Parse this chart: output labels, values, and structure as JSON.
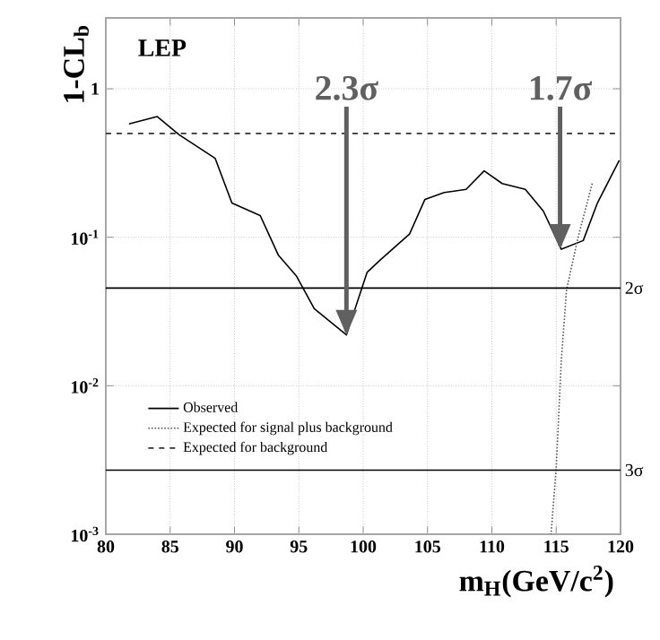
{
  "chart_data": {
    "type": "line",
    "xlabel": "m$_{H}$(GeV/c$^{2}$)",
    "ylabel": "1-CL$_{b}$",
    "xlim": [
      80,
      120
    ],
    "ylim": [
      0.001,
      3
    ],
    "log": "y",
    "xticks": [
      80,
      85,
      90,
      95,
      100,
      105,
      110,
      115,
      120
    ],
    "yticks": [
      {
        "value": 1,
        "label": "1"
      },
      {
        "value": 0.1,
        "label": "10$^{-1}$"
      },
      {
        "value": 0.01,
        "label": "10$^{-2}$"
      },
      {
        "value": 0.001,
        "label": "10$^{-3}$"
      }
    ],
    "grid": true,
    "legend": "bottom left",
    "series": [
      {
        "name": "Observed",
        "color": "#000000",
        "line_style": "solid",
        "x": [
          81.8,
          84.0,
          85.7,
          88.5,
          89.8,
          92.0,
          93.4,
          94.8,
          96.2,
          98.7,
          100.3,
          101.3,
          103.6,
          104.8,
          106.3,
          108.0,
          109.4,
          110.8,
          112.6,
          114.0,
          115.4,
          117.1,
          118.2,
          119.9
        ],
        "values": [
          0.58,
          0.65,
          0.49,
          0.34,
          0.17,
          0.14,
          0.076,
          0.055,
          0.033,
          0.022,
          0.058,
          0.07,
          0.105,
          0.18,
          0.2,
          0.21,
          0.28,
          0.23,
          0.21,
          0.15,
          0.083,
          0.095,
          0.17,
          0.33
        ]
      },
      {
        "name": "Expected for signal plus background",
        "color": "#555555",
        "line_style": "dotted",
        "x": [
          117.8,
          116.7,
          115.8,
          115.4,
          115.0,
          114.6
        ],
        "values": [
          0.23,
          0.1,
          0.044,
          0.015,
          0.0028,
          0.001
        ]
      },
      {
        "name": "Expected for background",
        "color": "#333333",
        "line_style": "dashed",
        "x": [
          80,
          120
        ],
        "values": [
          0.5,
          0.5
        ]
      }
    ],
    "ref_lines": [
      {
        "axis": "y",
        "value": 0.0455,
        "label": "2σ",
        "color": "#000000",
        "line_style": "solid"
      },
      {
        "axis": "y",
        "value": 0.0027,
        "label": "3σ",
        "color": "#000000",
        "line_style": "solid"
      }
    ],
    "annotations": [
      "LEP",
      {
        "text": "2.3σ",
        "x": 98.7,
        "y": 0.022
      },
      {
        "text": "1.7σ",
        "x": 115.3,
        "y": 0.083
      }
    ]
  }
}
